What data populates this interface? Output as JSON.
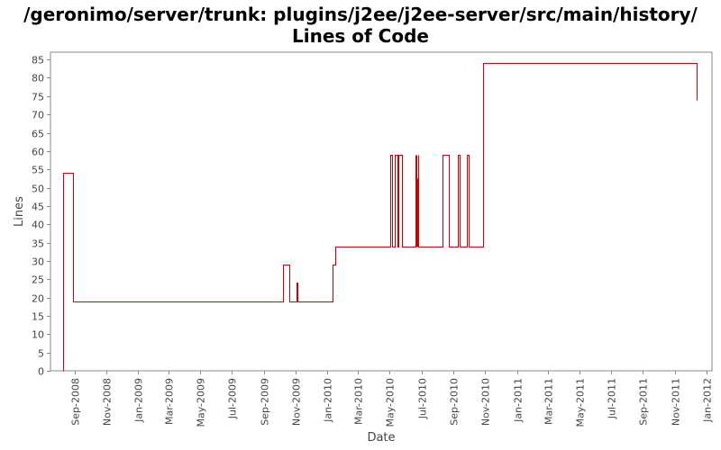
{
  "chart_data": {
    "type": "line",
    "step": true,
    "title": "/geronimo/server/trunk: plugins/j2ee/j2ee-server/src/main/history/ Lines of Code",
    "xlabel": "Date",
    "ylabel": "Lines",
    "xlim": [
      "2008-07-16",
      "2012-01-12"
    ],
    "ylim": [
      0,
      87
    ],
    "yticks": [
      0,
      5,
      10,
      15,
      20,
      25,
      30,
      35,
      40,
      45,
      50,
      55,
      60,
      65,
      70,
      75,
      80,
      85
    ],
    "xticks": [
      {
        "date": "2008-09-01",
        "label": "Sep-2008"
      },
      {
        "date": "2008-11-01",
        "label": "Nov-2008"
      },
      {
        "date": "2009-01-01",
        "label": "Jan-2009"
      },
      {
        "date": "2009-03-01",
        "label": "Mar-2009"
      },
      {
        "date": "2009-05-01",
        "label": "May-2009"
      },
      {
        "date": "2009-07-01",
        "label": "Jul-2009"
      },
      {
        "date": "2009-09-01",
        "label": "Sep-2009"
      },
      {
        "date": "2009-11-01",
        "label": "Nov-2009"
      },
      {
        "date": "2010-01-01",
        "label": "Jan-2010"
      },
      {
        "date": "2010-03-01",
        "label": "Mar-2010"
      },
      {
        "date": "2010-05-01",
        "label": "May-2010"
      },
      {
        "date": "2010-07-01",
        "label": "Jul-2010"
      },
      {
        "date": "2010-09-01",
        "label": "Sep-2010"
      },
      {
        "date": "2010-11-01",
        "label": "Nov-2010"
      },
      {
        "date": "2011-01-01",
        "label": "Jan-2011"
      },
      {
        "date": "2011-03-01",
        "label": "Mar-2011"
      },
      {
        "date": "2011-05-01",
        "label": "May-2011"
      },
      {
        "date": "2011-07-01",
        "label": "Jul-2011"
      },
      {
        "date": "2011-09-01",
        "label": "Sep-2011"
      },
      {
        "date": "2011-11-01",
        "label": "Nov-2011"
      },
      {
        "date": "2012-01-01",
        "label": "Jan-2012"
      }
    ],
    "grid": false,
    "legend": "none",
    "color": "#cc0000",
    "series": [
      {
        "points": [
          {
            "x": "2008-08-10",
            "y": 0
          },
          {
            "x": "2008-08-10",
            "y": 54
          },
          {
            "x": "2008-08-28",
            "y": 54
          },
          {
            "x": "2008-08-28",
            "y": 19
          },
          {
            "x": "2009-10-08",
            "y": 19
          },
          {
            "x": "2009-10-08",
            "y": 29
          },
          {
            "x": "2009-10-20",
            "y": 29
          },
          {
            "x": "2009-10-20",
            "y": 19
          },
          {
            "x": "2009-11-03",
            "y": 19
          },
          {
            "x": "2009-11-03",
            "y": 24
          },
          {
            "x": "2009-11-04",
            "y": 24
          },
          {
            "x": "2009-11-04",
            "y": 19
          },
          {
            "x": "2010-01-10",
            "y": 19
          },
          {
            "x": "2010-01-10",
            "y": 29
          },
          {
            "x": "2010-01-16",
            "y": 29
          },
          {
            "x": "2010-01-16",
            "y": 34
          },
          {
            "x": "2010-05-02",
            "y": 34
          },
          {
            "x": "2010-05-02",
            "y": 59
          },
          {
            "x": "2010-05-05",
            "y": 59
          },
          {
            "x": "2010-05-05",
            "y": 34
          },
          {
            "x": "2010-05-10",
            "y": 34
          },
          {
            "x": "2010-05-10",
            "y": 59
          },
          {
            "x": "2010-05-15",
            "y": 59
          },
          {
            "x": "2010-05-15",
            "y": 34
          },
          {
            "x": "2010-05-18",
            "y": 34
          },
          {
            "x": "2010-05-18",
            "y": 59
          },
          {
            "x": "2010-05-25",
            "y": 59
          },
          {
            "x": "2010-05-25",
            "y": 34
          },
          {
            "x": "2010-06-20",
            "y": 34
          },
          {
            "x": "2010-06-20",
            "y": 59
          },
          {
            "x": "2010-06-21",
            "y": 34
          },
          {
            "x": "2010-06-22",
            "y": 59
          },
          {
            "x": "2010-06-23",
            "y": 34
          },
          {
            "x": "2010-06-24",
            "y": 59
          },
          {
            "x": "2010-06-25",
            "y": 34
          },
          {
            "x": "2010-08-10",
            "y": 34
          },
          {
            "x": "2010-08-10",
            "y": 59
          },
          {
            "x": "2010-08-22",
            "y": 59
          },
          {
            "x": "2010-08-22",
            "y": 34
          },
          {
            "x": "2010-09-10",
            "y": 34
          },
          {
            "x": "2010-09-10",
            "y": 59
          },
          {
            "x": "2010-09-12",
            "y": 59
          },
          {
            "x": "2010-09-12",
            "y": 34
          },
          {
            "x": "2010-09-27",
            "y": 34
          },
          {
            "x": "2010-09-27",
            "y": 59
          },
          {
            "x": "2010-09-30",
            "y": 59
          },
          {
            "x": "2010-09-30",
            "y": 34
          },
          {
            "x": "2010-10-28",
            "y": 34
          },
          {
            "x": "2010-10-28",
            "y": 84
          },
          {
            "x": "2011-12-13",
            "y": 84
          },
          {
            "x": "2011-12-13",
            "y": 74
          }
        ]
      }
    ]
  }
}
